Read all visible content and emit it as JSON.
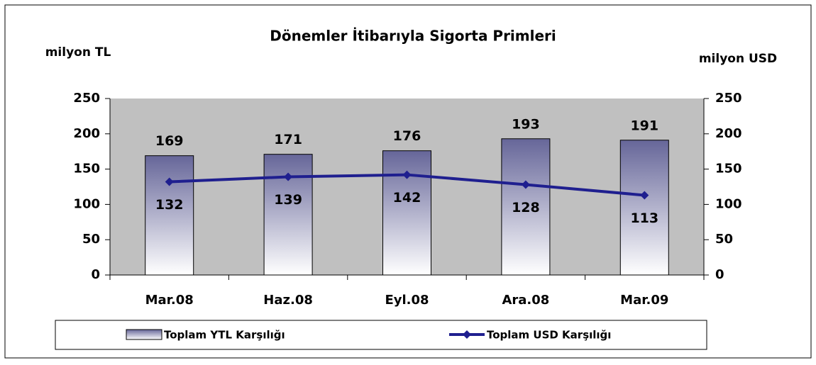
{
  "chart_data": {
    "type": "bar",
    "title": "Dönemler İtibarıyla Sigorta Primleri",
    "y_label": "milyon TL",
    "y2_label": "milyon USD",
    "categories": [
      "Mar.08",
      "Haz.08",
      "Eyl.08",
      "Ara.08",
      "Mar.09"
    ],
    "series": [
      {
        "name": "Toplam YTL Karşılığı",
        "type": "bar",
        "color": "#666699",
        "values": [
          169,
          171,
          176,
          193,
          191
        ]
      },
      {
        "name": "Toplam USD Karşılığı",
        "type": "line",
        "axis": "y2",
        "color": "#1f1f8f",
        "values": [
          132,
          139,
          142,
          128,
          113
        ]
      }
    ],
    "ylim": [
      0,
      250
    ],
    "yticks": [
      0,
      50,
      100,
      150,
      200,
      250
    ],
    "y2lim": [
      0,
      250
    ],
    "y2ticks": [
      0,
      50,
      100,
      150,
      200,
      250
    ],
    "legend": "bottom"
  }
}
